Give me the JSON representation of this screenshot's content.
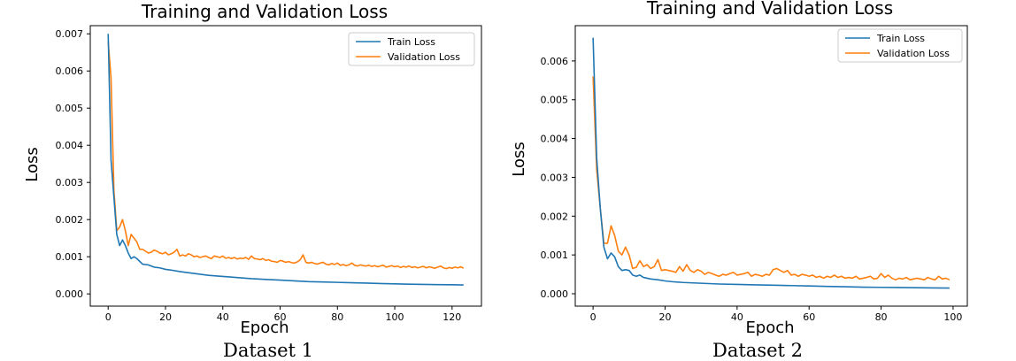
{
  "colors": {
    "train": "#1f77b4",
    "validation": "#ff7f0e"
  },
  "chart_data": [
    {
      "type": "line",
      "title": "Training and Validation Loss",
      "xlabel": "Epoch",
      "ylabel": "Loss",
      "caption": "Dataset 1",
      "xlim": [
        -6.25,
        130.25
      ],
      "ylim": [
        -0.00033,
        0.00722
      ],
      "xticks": [
        0,
        20,
        40,
        60,
        80,
        100,
        120
      ],
      "xtick_labels": [
        "0",
        "20",
        "40",
        "60",
        "80",
        "100",
        "120"
      ],
      "yticks": [
        0.0,
        0.001,
        0.002,
        0.003,
        0.004,
        0.005,
        0.006,
        0.007
      ],
      "ytick_labels": [
        "0.000",
        "0.001",
        "0.002",
        "0.003",
        "0.004",
        "0.005",
        "0.006",
        "0.007"
      ],
      "legend_position": "top-right",
      "series": [
        {
          "name": "Train Loss",
          "x": [
            0,
            1,
            2,
            3,
            4,
            5,
            6,
            7,
            8,
            9,
            10,
            12,
            14,
            16,
            18,
            20,
            22,
            25,
            30,
            35,
            40,
            45,
            50,
            55,
            60,
            65,
            70,
            75,
            80,
            85,
            90,
            95,
            100,
            105,
            110,
            115,
            120,
            124
          ],
          "values": [
            0.007,
            0.0036,
            0.0026,
            0.0016,
            0.0013,
            0.00145,
            0.0013,
            0.0011,
            0.00095,
            0.001,
            0.00095,
            0.0008,
            0.00078,
            0.00072,
            0.0007,
            0.00066,
            0.00064,
            0.0006,
            0.00055,
            0.0005,
            0.00047,
            0.00044,
            0.00041,
            0.00039,
            0.00037,
            0.00035,
            0.00033,
            0.00032,
            0.00031,
            0.0003,
            0.00029,
            0.00028,
            0.00027,
            0.00026,
            0.000255,
            0.00025,
            0.000245,
            0.00024
          ]
        },
        {
          "name": "Validation Loss",
          "x": [
            0,
            1,
            2,
            3,
            4,
            5,
            6,
            7,
            8,
            9,
            10,
            11,
            12,
            13,
            14,
            15,
            16,
            17,
            18,
            19,
            20,
            21,
            22,
            23,
            24,
            25,
            26,
            27,
            28,
            29,
            30,
            31,
            32,
            33,
            34,
            35,
            36,
            37,
            38,
            39,
            40,
            41,
            42,
            43,
            44,
            45,
            46,
            47,
            48,
            49,
            50,
            51,
            52,
            53,
            54,
            55,
            56,
            57,
            58,
            59,
            60,
            61,
            62,
            63,
            64,
            65,
            66,
            67,
            68,
            69,
            70,
            71,
            72,
            73,
            74,
            75,
            76,
            77,
            78,
            79,
            80,
            81,
            82,
            83,
            84,
            85,
            86,
            87,
            88,
            89,
            90,
            91,
            92,
            93,
            94,
            95,
            96,
            97,
            98,
            99,
            100,
            101,
            102,
            103,
            104,
            105,
            106,
            107,
            108,
            109,
            110,
            111,
            112,
            113,
            114,
            115,
            116,
            117,
            118,
            119,
            120,
            121,
            122,
            123,
            124
          ],
          "values": [
            0.0068,
            0.0058,
            0.0028,
            0.0017,
            0.0018,
            0.002,
            0.0017,
            0.0013,
            0.0016,
            0.0015,
            0.0014,
            0.0012,
            0.0012,
            0.00115,
            0.0011,
            0.00112,
            0.00118,
            0.00115,
            0.0011,
            0.00108,
            0.00112,
            0.00105,
            0.00108,
            0.00112,
            0.0012,
            0.00102,
            0.00105,
            0.00102,
            0.00108,
            0.00105,
            0.001,
            0.00102,
            0.00098,
            0.001,
            0.00102,
            0.00098,
            0.00095,
            0.00102,
            0.001,
            0.00098,
            0.00102,
            0.00096,
            0.00098,
            0.00095,
            0.00098,
            0.00094,
            0.00096,
            0.00095,
            0.00098,
            0.00093,
            0.00102,
            0.00095,
            0.00094,
            0.00092,
            0.00095,
            0.0009,
            0.00092,
            0.00088,
            0.00087,
            0.00085,
            0.0009,
            0.00088,
            0.00085,
            0.00087,
            0.00084,
            0.00083,
            0.00086,
            0.00092,
            0.00105,
            0.00085,
            0.00083,
            0.00085,
            0.00082,
            0.0008,
            0.00083,
            0.00085,
            0.0008,
            0.00078,
            0.00082,
            0.00079,
            0.00083,
            0.00077,
            0.00079,
            0.00076,
            0.00078,
            0.00083,
            0.00077,
            0.00075,
            0.00078,
            0.00076,
            0.00075,
            0.00077,
            0.00074,
            0.00076,
            0.00073,
            0.00075,
            0.00077,
            0.00072,
            0.00074,
            0.00076,
            0.00073,
            0.00075,
            0.00071,
            0.00074,
            0.00072,
            0.00075,
            0.00071,
            0.00073,
            0.0007,
            0.00072,
            0.00074,
            0.0007,
            0.00073,
            0.00071,
            0.00069,
            0.00072,
            0.00075,
            0.0007,
            0.00068,
            0.00071,
            0.00069,
            0.00072,
            0.0007,
            0.00073,
            0.00069
          ]
        }
      ]
    },
    {
      "type": "line",
      "title": "Training and Validation Loss",
      "xlabel": "Epoch",
      "ylabel": "Loss",
      "caption": "Dataset 2",
      "xlim": [
        -4.95,
        103.95
      ],
      "ylim": [
        -0.00032,
        0.00691
      ],
      "xticks": [
        0,
        20,
        40,
        60,
        80,
        100
      ],
      "xtick_labels": [
        "0",
        "20",
        "40",
        "60",
        "80",
        "100"
      ],
      "yticks": [
        0.0,
        0.001,
        0.002,
        0.003,
        0.004,
        0.005,
        0.006
      ],
      "ytick_labels": [
        "0.000",
        "0.001",
        "0.002",
        "0.003",
        "0.004",
        "0.005",
        "0.006"
      ],
      "legend_position": "top-right",
      "series": [
        {
          "name": "Train Loss",
          "x": [
            0,
            1,
            2,
            3,
            4,
            5,
            6,
            7,
            8,
            9,
            10,
            11,
            12,
            13,
            14,
            15,
            16,
            18,
            20,
            22,
            25,
            30,
            35,
            40,
            45,
            50,
            55,
            60,
            65,
            70,
            75,
            80,
            85,
            90,
            95,
            99
          ],
          "values": [
            0.0066,
            0.0035,
            0.0022,
            0.0012,
            0.0009,
            0.00105,
            0.00095,
            0.0007,
            0.0006,
            0.00062,
            0.0006,
            0.00048,
            0.00045,
            0.00048,
            0.00042,
            0.0004,
            0.00038,
            0.00036,
            0.00033,
            0.00031,
            0.00029,
            0.00027,
            0.00025,
            0.00024,
            0.00023,
            0.00022,
            0.00021,
            0.0002,
            0.00019,
            0.00018,
            0.00017,
            0.000165,
            0.00016,
            0.000155,
            0.00015,
            0.000145
          ]
        },
        {
          "name": "Validation Loss",
          "x": [
            0,
            1,
            2,
            3,
            4,
            5,
            6,
            7,
            8,
            9,
            10,
            11,
            12,
            13,
            14,
            15,
            16,
            17,
            18,
            19,
            20,
            21,
            22,
            23,
            24,
            25,
            26,
            27,
            28,
            29,
            30,
            31,
            32,
            33,
            34,
            35,
            36,
            37,
            38,
            39,
            40,
            41,
            42,
            43,
            44,
            45,
            46,
            47,
            48,
            49,
            50,
            51,
            52,
            53,
            54,
            55,
            56,
            57,
            58,
            59,
            60,
            61,
            62,
            63,
            64,
            65,
            66,
            67,
            68,
            69,
            70,
            71,
            72,
            73,
            74,
            75,
            76,
            77,
            78,
            79,
            80,
            81,
            82,
            83,
            84,
            85,
            86,
            87,
            88,
            89,
            90,
            91,
            92,
            93,
            94,
            95,
            96,
            97,
            98,
            99
          ],
          "values": [
            0.0056,
            0.0032,
            0.0022,
            0.0013,
            0.0013,
            0.00175,
            0.0015,
            0.0011,
            0.001,
            0.0012,
            0.001,
            0.00065,
            0.00068,
            0.00085,
            0.0007,
            0.00075,
            0.00065,
            0.0007,
            0.00088,
            0.0006,
            0.00062,
            0.0006,
            0.00058,
            0.00055,
            0.0007,
            0.00058,
            0.00075,
            0.0006,
            0.00055,
            0.00062,
            0.00058,
            0.0005,
            0.00055,
            0.00052,
            0.00048,
            0.00045,
            0.0005,
            0.00048,
            0.00052,
            0.00055,
            0.00048,
            0.0005,
            0.00052,
            0.00055,
            0.00045,
            0.0005,
            0.00048,
            0.00045,
            0.0005,
            0.00048,
            0.00062,
            0.00065,
            0.0006,
            0.00055,
            0.0006,
            0.00048,
            0.0005,
            0.00045,
            0.0005,
            0.00048,
            0.00045,
            0.00048,
            0.00042,
            0.00045,
            0.0004,
            0.00045,
            0.00042,
            0.00048,
            0.00042,
            0.00045,
            0.0004,
            0.00042,
            0.0004,
            0.00045,
            0.00038,
            0.0004,
            0.00042,
            0.00045,
            0.00038,
            0.0004,
            0.00052,
            0.00042,
            0.00048,
            0.0004,
            0.00036,
            0.0004,
            0.00038,
            0.00042,
            0.00036,
            0.00038,
            0.0004,
            0.00038,
            0.00036,
            0.00042,
            0.00038,
            0.00036,
            0.00045,
            0.00038,
            0.0004,
            0.00036
          ]
        }
      ]
    }
  ]
}
